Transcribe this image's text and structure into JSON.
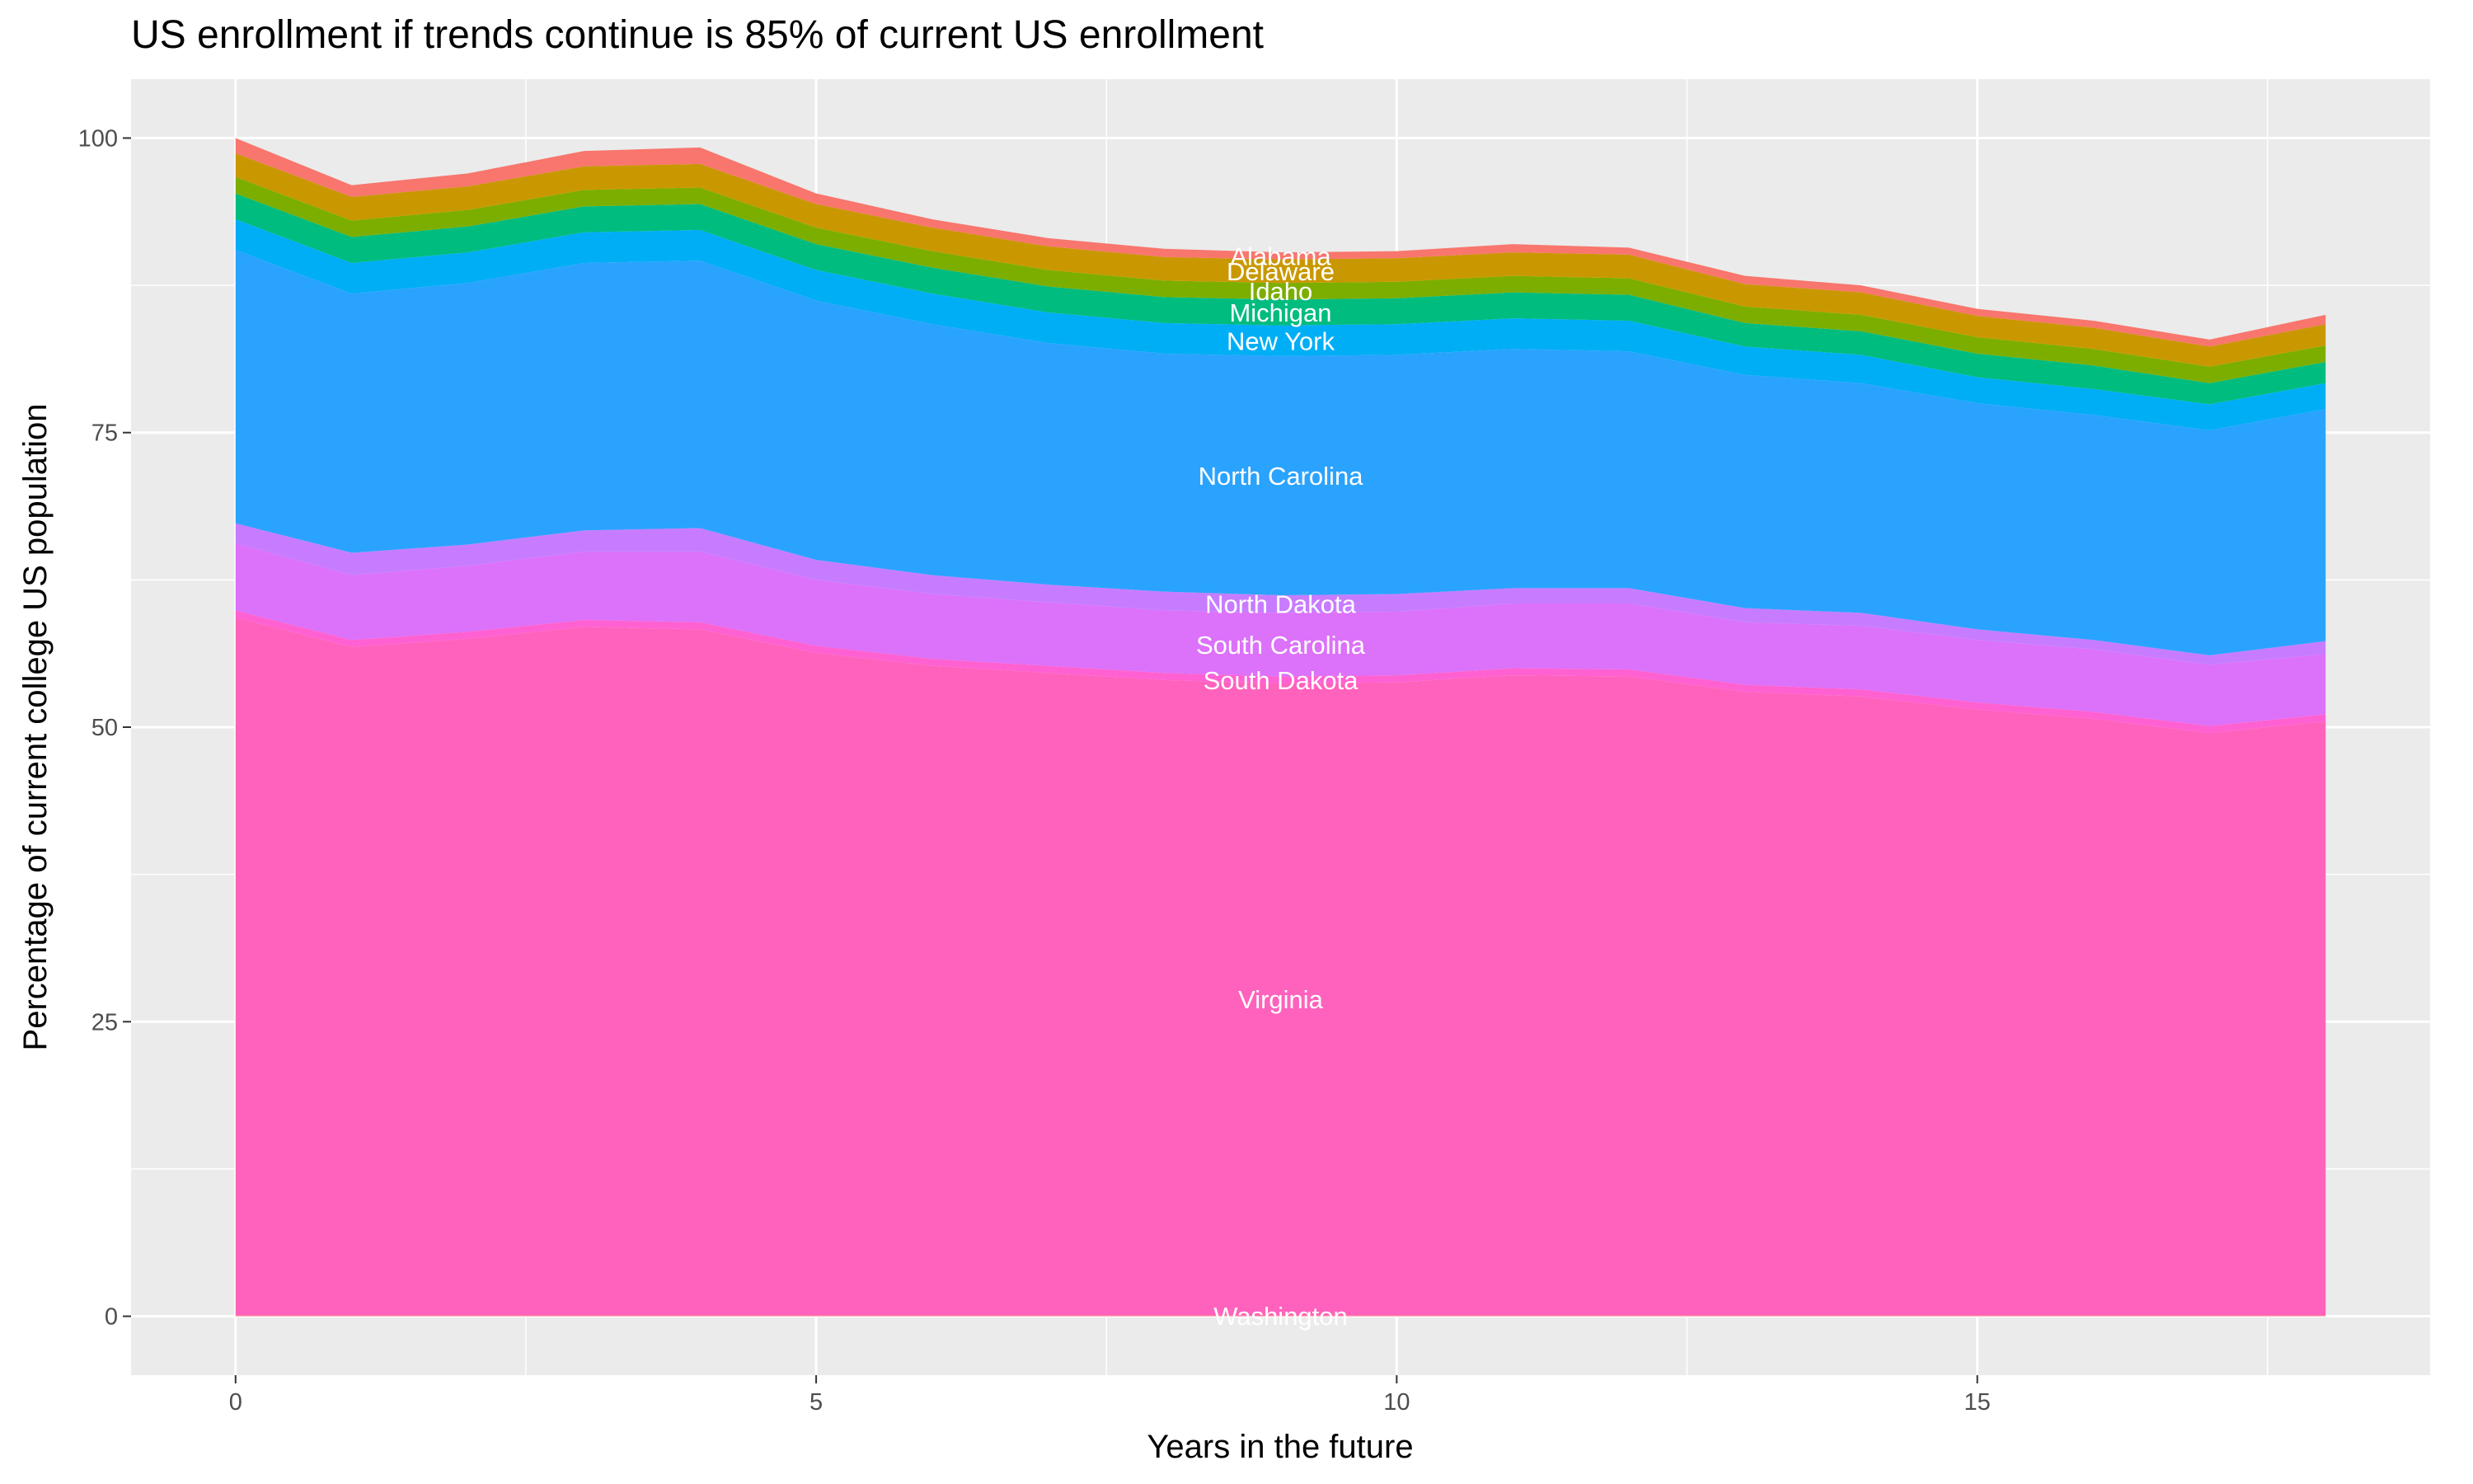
{
  "chart_data": {
    "type": "stacked_area",
    "title": "US enrollment if trends continue is 85% of current US enrollment",
    "x_label": "Years in the future",
    "y_label": "Percentage of current college US population",
    "x": [
      0,
      1,
      2,
      3,
      4,
      5,
      6,
      7,
      8,
      9,
      10,
      11,
      12,
      13,
      14,
      15,
      16,
      17,
      18
    ],
    "xlim": [
      -0.9,
      18.9
    ],
    "ylim": [
      -5,
      105
    ],
    "xticks": [
      0,
      5,
      10,
      15
    ],
    "yticks": [
      0,
      25,
      50,
      75,
      100
    ],
    "x_minor_ticks": [
      2.5,
      7.5,
      12.5,
      17.5
    ],
    "y_minor_ticks": [
      12.5,
      37.5,
      62.5,
      87.5
    ],
    "grid": true,
    "label_at_x": 9,
    "series": [
      {
        "name": "Washington",
        "color": "#FF6C91",
        "values": [
          0.1,
          0.1,
          0.1,
          0.1,
          0.1,
          0.1,
          0.1,
          0.1,
          0.1,
          0.1,
          0.1,
          0.1,
          0.1,
          0.1,
          0.1,
          0.1,
          0.1,
          0.1,
          0.1
        ]
      },
      {
        "name": "Virginia",
        "color": "#FF62BC",
        "values": [
          59.2,
          56.7,
          57.4,
          58.4,
          58.2,
          56.2,
          55.1,
          54.5,
          53.9,
          53.6,
          53.7,
          54.3,
          54.2,
          52.9,
          52.5,
          51.4,
          50.6,
          49.4,
          50.4
        ]
      },
      {
        "name": "South Dakota",
        "color": "#FF61D2",
        "values": [
          0.6,
          0.6,
          0.6,
          0.6,
          0.6,
          0.6,
          0.6,
          0.6,
          0.6,
          0.6,
          0.6,
          0.6,
          0.6,
          0.6,
          0.6,
          0.6,
          0.6,
          0.6,
          0.6
        ]
      },
      {
        "name": "South Carolina",
        "color": "#DC71FA",
        "values": [
          5.7,
          5.5,
          5.6,
          5.8,
          6.0,
          5.6,
          5.5,
          5.4,
          5.3,
          5.4,
          5.4,
          5.5,
          5.6,
          5.3,
          5.4,
          5.3,
          5.3,
          5.2,
          5.1
        ]
      },
      {
        "name": "North Dakota",
        "color": "#C77CFF",
        "values": [
          1.7,
          1.9,
          1.8,
          1.8,
          2.0,
          1.7,
          1.6,
          1.5,
          1.6,
          1.5,
          1.5,
          1.3,
          1.3,
          1.2,
          1.1,
          0.9,
          0.8,
          0.8,
          1.1
        ]
      },
      {
        "name": "North Carolina",
        "color": "#2AA3FF",
        "values": [
          23.2,
          22.0,
          22.2,
          22.7,
          22.7,
          22.0,
          21.3,
          20.5,
          20.2,
          20.3,
          20.3,
          20.3,
          20.1,
          19.8,
          19.5,
          19.2,
          19.1,
          19.1,
          19.7
        ]
      },
      {
        "name": "New York",
        "color": "#00AEF6",
        "values": [
          2.6,
          2.6,
          2.6,
          2.6,
          2.6,
          2.6,
          2.6,
          2.6,
          2.6,
          2.6,
          2.6,
          2.6,
          2.6,
          2.4,
          2.4,
          2.2,
          2.2,
          2.2,
          2.2
        ]
      },
      {
        "name": "Michigan",
        "color": "#00BC7F",
        "values": [
          2.2,
          2.2,
          2.2,
          2.2,
          2.2,
          2.2,
          2.2,
          2.2,
          2.2,
          2.2,
          2.2,
          2.2,
          2.2,
          2.0,
          2.0,
          2.0,
          2.0,
          1.8,
          1.8
        ]
      },
      {
        "name": "Idaho",
        "color": "#7CAE00",
        "values": [
          1.4,
          1.4,
          1.4,
          1.4,
          1.4,
          1.4,
          1.4,
          1.4,
          1.4,
          1.4,
          1.4,
          1.4,
          1.4,
          1.4,
          1.4,
          1.4,
          1.4,
          1.4,
          1.4
        ]
      },
      {
        "name": "Delaware",
        "color": "#C99800",
        "values": [
          2.0,
          2.0,
          2.0,
          2.0,
          2.0,
          2.0,
          2.0,
          2.0,
          2.0,
          2.0,
          2.0,
          2.0,
          2.0,
          1.9,
          1.9,
          1.8,
          1.8,
          1.7,
          1.8
        ]
      },
      {
        "name": "Alabama",
        "color": "#F8766D",
        "values": [
          1.3,
          1.0,
          1.1,
          1.3,
          1.4,
          0.9,
          0.7,
          0.7,
          0.7,
          0.6,
          0.6,
          0.7,
          0.6,
          0.7,
          0.6,
          0.6,
          0.6,
          0.6,
          0.8
        ]
      }
    ]
  }
}
